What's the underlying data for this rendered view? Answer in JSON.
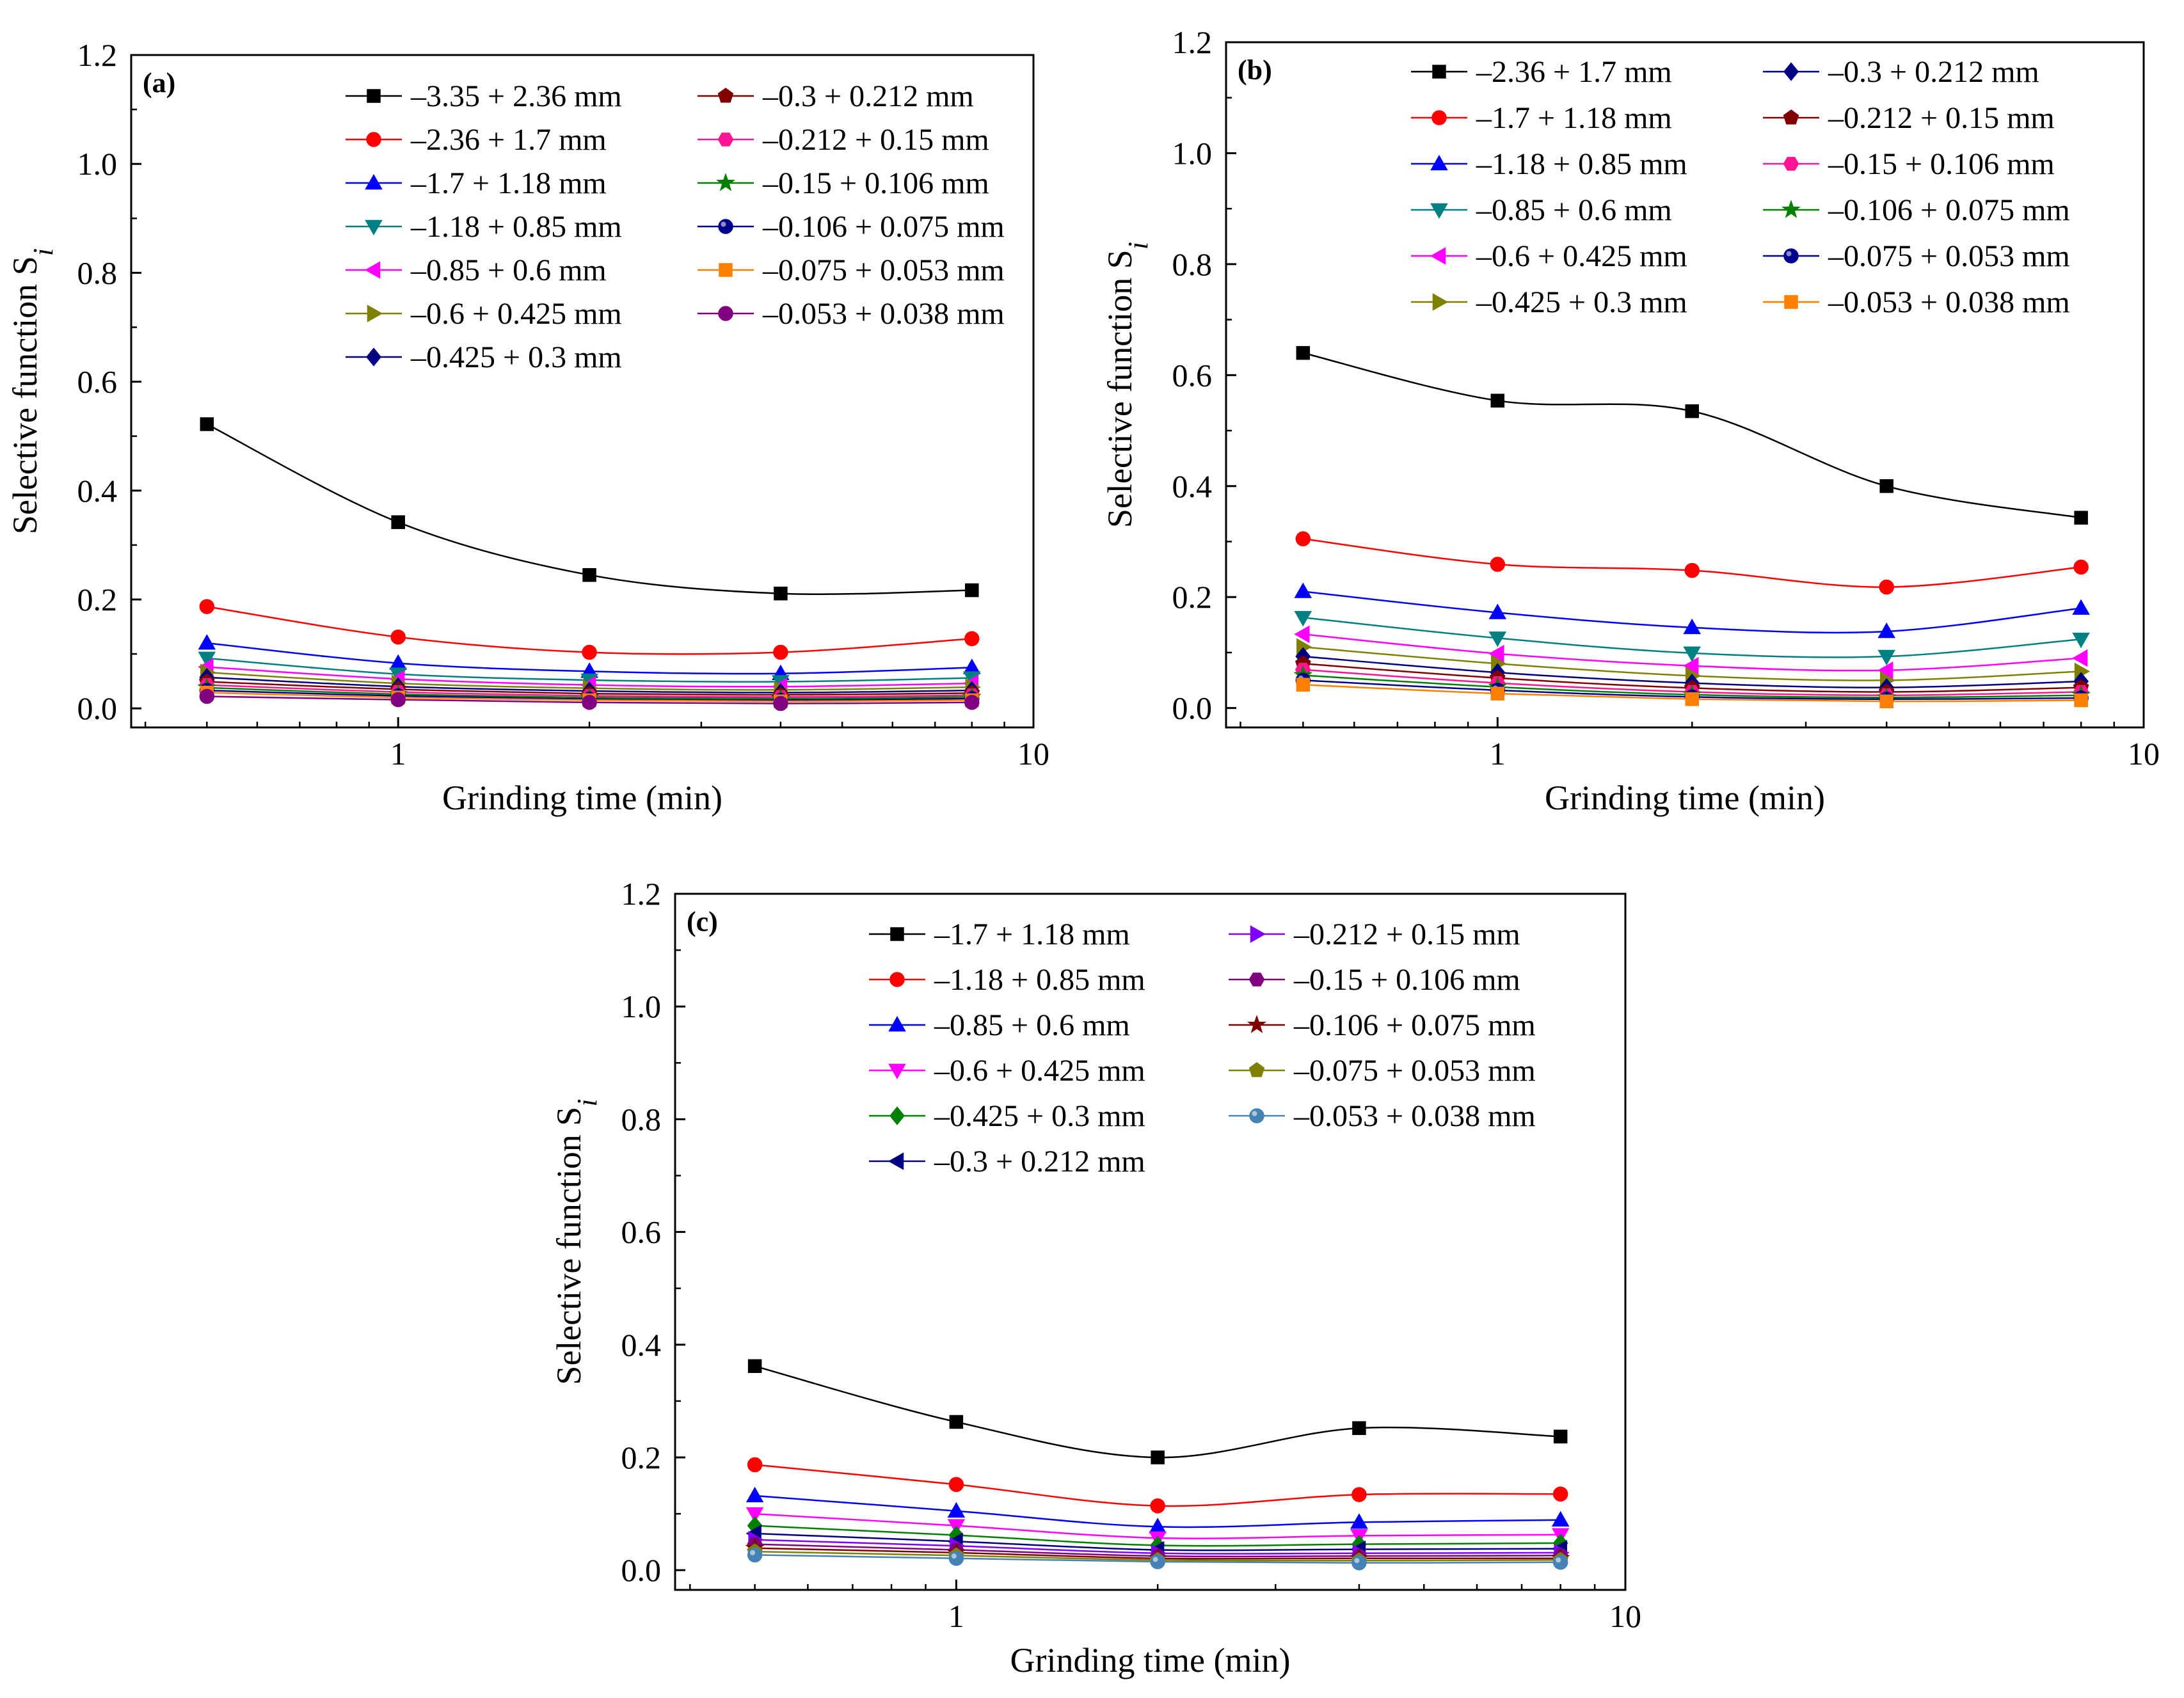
{
  "chart_data": [
    {
      "type": "line",
      "panel_label": "(a)",
      "xlabel": "Grinding time (min)",
      "ylabel": "Selective function S",
      "ylabel_subscript": "i",
      "xscale": "log",
      "xlim": [
        0.38,
        10
      ],
      "ylim": [
        -0.035,
        1.2
      ],
      "xticks": [
        1,
        10
      ],
      "xtick_labels": [
        "1",
        "10"
      ],
      "yticks": [
        0.0,
        0.2,
        0.4,
        0.6,
        0.8,
        1.0,
        1.2
      ],
      "ytick_labels": [
        "0.0",
        "0.2",
        "0.4",
        "0.6",
        "0.8",
        "1.0",
        "1.2"
      ],
      "legend_position": "top-right",
      "x": [
        0.5,
        1,
        2,
        4,
        8
      ],
      "series": [
        {
          "name": "–3.35 + 2.36 mm",
          "color": "#000000",
          "marker": "square",
          "values": [
            0.522,
            0.342,
            0.245,
            0.211,
            0.217
          ]
        },
        {
          "name": "–2.36 + 1.7 mm",
          "color": "#ff0000",
          "marker": "circle",
          "values": [
            0.187,
            0.131,
            0.103,
            0.103,
            0.128
          ]
        },
        {
          "name": "–1.7 + 1.18 mm",
          "color": "#0000ff",
          "marker": "triangle-up",
          "values": [
            0.12,
            0.083,
            0.068,
            0.064,
            0.075
          ]
        },
        {
          "name": "–1.18 + 0.85 mm",
          "color": "#008080",
          "marker": "triangle-down",
          "values": [
            0.092,
            0.063,
            0.052,
            0.049,
            0.056
          ]
        },
        {
          "name": "–0.85 + 0.6 mm",
          "color": "#ff00ff",
          "marker": "triangle-left",
          "values": [
            0.076,
            0.054,
            0.043,
            0.04,
            0.046
          ]
        },
        {
          "name": "–0.6 + 0.425 mm",
          "color": "#808000",
          "marker": "triangle-right",
          "values": [
            0.066,
            0.046,
            0.037,
            0.034,
            0.039
          ]
        },
        {
          "name": "–0.425 + 0.3 mm",
          "color": "#000080",
          "marker": "diamond",
          "values": [
            0.057,
            0.04,
            0.032,
            0.029,
            0.033
          ]
        },
        {
          "name": "–0.3 + 0.212 mm",
          "color": "#800000",
          "marker": "pentagon",
          "values": [
            0.049,
            0.035,
            0.027,
            0.025,
            0.028
          ]
        },
        {
          "name": "–0.212 + 0.15 mm",
          "color": "#ff1493",
          "marker": "hexagon",
          "values": [
            0.043,
            0.03,
            0.023,
            0.021,
            0.024
          ]
        },
        {
          "name": "–0.15 + 0.106 mm",
          "color": "#008000",
          "marker": "star",
          "values": [
            0.038,
            0.026,
            0.02,
            0.018,
            0.021
          ]
        },
        {
          "name": "–0.106 + 0.075 mm",
          "color": "#00008b",
          "marker": "sphere",
          "values": [
            0.033,
            0.023,
            0.017,
            0.015,
            0.018
          ]
        },
        {
          "name": "–0.075 + 0.053 mm",
          "color": "#ff8000",
          "marker": "square",
          "values": [
            0.029,
            0.02,
            0.015,
            0.013,
            0.015
          ]
        },
        {
          "name": "–0.053 + 0.038 mm",
          "color": "#800080",
          "marker": "circle",
          "values": [
            0.022,
            0.016,
            0.011,
            0.009,
            0.011
          ]
        }
      ]
    },
    {
      "type": "line",
      "panel_label": "(b)",
      "xlabel": "Grinding time (min)",
      "ylabel": "Selective function S",
      "ylabel_subscript": "i",
      "xscale": "log",
      "xlim": [
        0.38,
        10
      ],
      "ylim": [
        -0.035,
        1.2
      ],
      "xticks": [
        1,
        10
      ],
      "xtick_labels": [
        "1",
        "10"
      ],
      "yticks": [
        0.0,
        0.2,
        0.4,
        0.6,
        0.8,
        1.0,
        1.2
      ],
      "ytick_labels": [
        "0.0",
        "0.2",
        "0.4",
        "0.6",
        "0.8",
        "1.0",
        "1.2"
      ],
      "legend_position": "top-right",
      "x": [
        0.5,
        1,
        2,
        4,
        8
      ],
      "series": [
        {
          "name": "–2.36 + 1.7 mm",
          "color": "#000000",
          "marker": "square",
          "values": [
            0.64,
            0.554,
            0.535,
            0.4,
            0.343
          ]
        },
        {
          "name": "–1.7 + 1.18 mm",
          "color": "#ff0000",
          "marker": "circle",
          "values": [
            0.305,
            0.259,
            0.248,
            0.218,
            0.254
          ]
        },
        {
          "name": "–1.18 + 0.85 mm",
          "color": "#0000ff",
          "marker": "triangle-up",
          "values": [
            0.21,
            0.172,
            0.145,
            0.138,
            0.18
          ]
        },
        {
          "name": "–0.85 + 0.6 mm",
          "color": "#008080",
          "marker": "triangle-down",
          "values": [
            0.163,
            0.126,
            0.099,
            0.093,
            0.124
          ]
        },
        {
          "name": "–0.6 + 0.425 mm",
          "color": "#ff00ff",
          "marker": "triangle-left",
          "values": [
            0.133,
            0.098,
            0.076,
            0.068,
            0.09
          ]
        },
        {
          "name": "–0.425 + 0.3 mm",
          "color": "#808000",
          "marker": "triangle-right",
          "values": [
            0.11,
            0.08,
            0.058,
            0.05,
            0.066
          ]
        },
        {
          "name": "–0.3 + 0.212 mm",
          "color": "#000080",
          "marker": "diamond",
          "values": [
            0.093,
            0.064,
            0.045,
            0.037,
            0.048
          ]
        },
        {
          "name": "–0.212 + 0.15 mm",
          "color": "#800000",
          "marker": "pentagon",
          "values": [
            0.08,
            0.054,
            0.036,
            0.029,
            0.037
          ]
        },
        {
          "name": "–0.15 + 0.106 mm",
          "color": "#ff1493",
          "marker": "hexagon",
          "values": [
            0.069,
            0.045,
            0.029,
            0.023,
            0.029
          ]
        },
        {
          "name": "–0.106 + 0.075 mm",
          "color": "#008000",
          "marker": "star",
          "values": [
            0.059,
            0.038,
            0.024,
            0.019,
            0.023
          ]
        },
        {
          "name": "–0.075 + 0.053 mm",
          "color": "#00008b",
          "marker": "sphere",
          "values": [
            0.05,
            0.032,
            0.02,
            0.016,
            0.018
          ]
        },
        {
          "name": "–0.053 + 0.038 mm",
          "color": "#ff8000",
          "marker": "square",
          "values": [
            0.042,
            0.026,
            0.016,
            0.012,
            0.014
          ]
        }
      ]
    },
    {
      "type": "line",
      "panel_label": "(c)",
      "xlabel": "Grinding time (min)",
      "ylabel": "Selective function S",
      "ylabel_subscript": "i",
      "xscale": "log",
      "xlim": [
        0.38,
        10
      ],
      "ylim": [
        -0.035,
        1.2
      ],
      "xticks": [
        1,
        10
      ],
      "xtick_labels": [
        "1",
        "10"
      ],
      "yticks": [
        0.0,
        0.2,
        0.4,
        0.6,
        0.8,
        1.0,
        1.2
      ],
      "ytick_labels": [
        "0.0",
        "0.2",
        "0.4",
        "0.6",
        "0.8",
        "1.0",
        "1.2"
      ],
      "legend_position": "top-right",
      "x": [
        0.5,
        1,
        2,
        4,
        8
      ],
      "series": [
        {
          "name": "–1.7 + 1.18 mm",
          "color": "#000000",
          "marker": "square",
          "values": [
            0.362,
            0.263,
            0.2,
            0.252,
            0.237
          ]
        },
        {
          "name": "–1.18 + 0.85 mm",
          "color": "#ff0000",
          "marker": "circle",
          "values": [
            0.187,
            0.152,
            0.114,
            0.134,
            0.135
          ]
        },
        {
          "name": "–0.85 + 0.6 mm",
          "color": "#0000ff",
          "marker": "triangle-up",
          "values": [
            0.132,
            0.105,
            0.077,
            0.085,
            0.089
          ]
        },
        {
          "name": "–0.6 + 0.425 mm",
          "color": "#ff00ff",
          "marker": "triangle-down",
          "values": [
            0.1,
            0.079,
            0.057,
            0.061,
            0.063
          ]
        },
        {
          "name": "–0.425 + 0.3 mm",
          "color": "#008000",
          "marker": "diamond",
          "values": [
            0.079,
            0.062,
            0.044,
            0.046,
            0.048
          ]
        },
        {
          "name": "–0.3 + 0.212 mm",
          "color": "#000080",
          "marker": "triangle-left",
          "values": [
            0.065,
            0.051,
            0.036,
            0.037,
            0.038
          ]
        },
        {
          "name": "–0.212 + 0.15 mm",
          "color": "#8000ff",
          "marker": "triangle-right",
          "values": [
            0.054,
            0.043,
            0.03,
            0.03,
            0.031
          ]
        },
        {
          "name": "–0.15 + 0.106 mm",
          "color": "#800080",
          "marker": "hexagon",
          "values": [
            0.046,
            0.036,
            0.025,
            0.025,
            0.026
          ]
        },
        {
          "name": "–0.106 + 0.075 mm",
          "color": "#800000",
          "marker": "star",
          "values": [
            0.039,
            0.031,
            0.021,
            0.021,
            0.021
          ]
        },
        {
          "name": "–0.075 + 0.053 mm",
          "color": "#808000",
          "marker": "pentagon",
          "values": [
            0.033,
            0.026,
            0.018,
            0.017,
            0.018
          ]
        },
        {
          "name": "–0.053 + 0.038 mm",
          "color": "#4682b4",
          "marker": "sphere",
          "values": [
            0.027,
            0.021,
            0.015,
            0.013,
            0.014
          ]
        }
      ]
    }
  ]
}
